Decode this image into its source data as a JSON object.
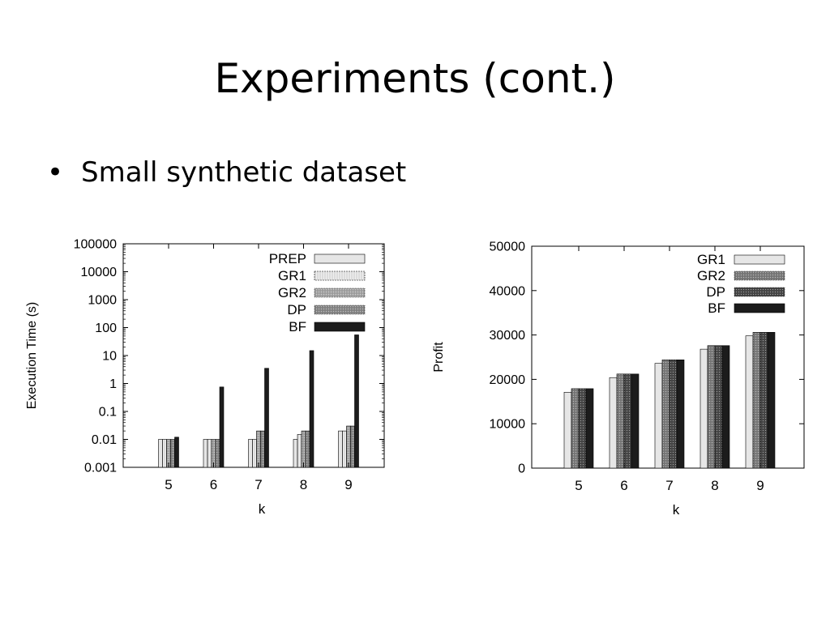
{
  "slide": {
    "title": "Experiments (cont.)",
    "bullets": [
      {
        "marker": "•",
        "text": "Small synthetic dataset"
      }
    ]
  },
  "chart_data": [
    {
      "type": "bar",
      "scale": "log",
      "categories": [
        "5",
        "6",
        "7",
        "8",
        "9"
      ],
      "xlabel": "k",
      "ylabel": "Execution Time (s)",
      "ylim": [
        0.001,
        100000
      ],
      "yticks": [
        "0.001",
        "0.01",
        "0.1",
        "1",
        "10",
        "100",
        "1000",
        "10000",
        "100000"
      ],
      "legend_position": "top-right",
      "grid": false,
      "series": [
        {
          "name": "PREP",
          "color": "#e6e6e6",
          "pattern": "solid",
          "values": [
            0.01,
            0.01,
            0.01,
            0.01,
            0.02
          ]
        },
        {
          "name": "GR1",
          "color": "#dcdcdc",
          "pattern": "dashed",
          "values": [
            0.01,
            0.01,
            0.01,
            0.015,
            0.02
          ]
        },
        {
          "name": "GR2",
          "color": "#a8a8a8",
          "pattern": "dotted",
          "values": [
            0.01,
            0.01,
            0.02,
            0.02,
            0.03
          ]
        },
        {
          "name": "DP",
          "color": "#8a8a8a",
          "pattern": "dotted",
          "values": [
            0.01,
            0.01,
            0.02,
            0.02,
            0.03
          ]
        },
        {
          "name": "BF",
          "color": "#1c1c1c",
          "pattern": "solid",
          "values": [
            0.012,
            0.75,
            3.5,
            15,
            55
          ]
        }
      ]
    },
    {
      "type": "bar",
      "scale": "linear",
      "categories": [
        "5",
        "6",
        "7",
        "8",
        "9"
      ],
      "xlabel": "k",
      "ylabel": "Profit",
      "ylim": [
        0,
        50000
      ],
      "yticks": [
        "0",
        "10000",
        "20000",
        "30000",
        "40000",
        "50000"
      ],
      "legend_position": "top-right",
      "grid": false,
      "series": [
        {
          "name": "GR1",
          "color": "#e6e6e6",
          "pattern": "solid",
          "values": [
            17100,
            20400,
            23600,
            26800,
            29800
          ]
        },
        {
          "name": "GR2",
          "color": "#7d7d7d",
          "pattern": "dotted",
          "values": [
            17900,
            21200,
            24400,
            27600,
            30600
          ]
        },
        {
          "name": "DP",
          "color": "#4a4a4a",
          "pattern": "dotted",
          "values": [
            17900,
            21200,
            24400,
            27600,
            30600
          ]
        },
        {
          "name": "BF",
          "color": "#1c1c1c",
          "pattern": "solid",
          "values": [
            17900,
            21200,
            24400,
            27600,
            30600
          ]
        }
      ]
    }
  ]
}
